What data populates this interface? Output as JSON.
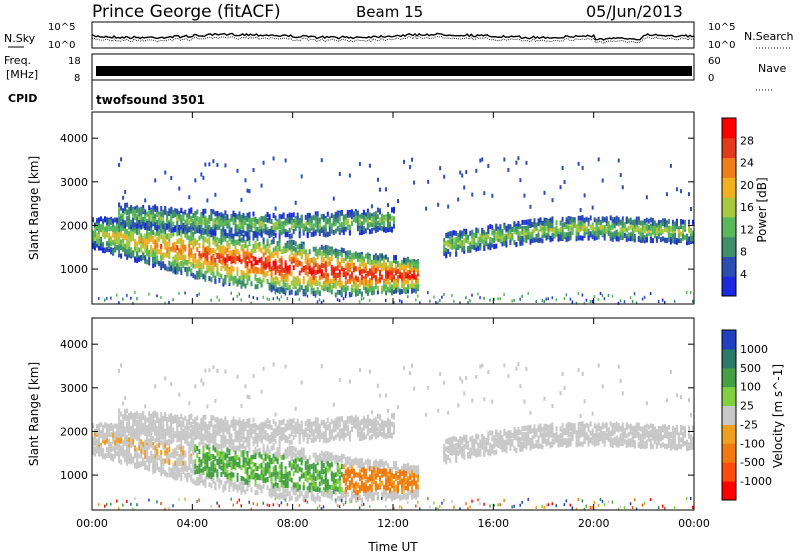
{
  "header": {
    "station": "Prince George (fitACF)",
    "beam": "Beam 15",
    "date": "05/Jun/2013"
  },
  "noise_panel": {
    "left_label": "N.Sky",
    "right_label": "N.Search",
    "left_ticks": [
      "10^5",
      "10^0"
    ],
    "right_ticks": [
      "10^5",
      "10^0"
    ]
  },
  "freq_panel": {
    "label_line1": "Freq.",
    "label_line2": "[MHz]",
    "left_ticks": [
      "18",
      "8"
    ],
    "right_label": "Nave",
    "right_ticks": [
      "60",
      "0"
    ]
  },
  "cpid_panel": {
    "label": "CPID",
    "value": "twofsound 3501"
  },
  "x_axis": {
    "label": "Time UT",
    "ticks": [
      "00:00",
      "04:00",
      "08:00",
      "12:00",
      "16:00",
      "20:00",
      "00:00"
    ]
  },
  "colors": {
    "power_scale": [
      "#1a28e0",
      "#2b4fb0",
      "#3f8f6a",
      "#58b85a",
      "#a8c840",
      "#f0b020",
      "#ef7d18",
      "#e23a1a",
      "#ff0000"
    ],
    "velocity_scale": [
      "#ff0000",
      "#ff4a10",
      "#f07a10",
      "#f0a020",
      "#c8c8c8",
      "#80d040",
      "#45a045",
      "#2a7a6a",
      "#2040c0"
    ]
  },
  "chart_data": [
    {
      "type": "heatmap",
      "title": "Power",
      "ylabel": "Slant Range [km]",
      "xlabel": "",
      "x_ticks": [
        "00:00",
        "04:00",
        "08:00",
        "12:00",
        "16:00",
        "20:00",
        "00:00"
      ],
      "y_ticks": [
        "1000",
        "2000",
        "3000",
        "4000"
      ],
      "ylim": [
        200,
        4600
      ],
      "colorbar": {
        "label": "Power [dB]",
        "ticks": [
          "4",
          "8",
          "12",
          "16",
          "20",
          "24",
          "28"
        ],
        "range": [
          0,
          32
        ]
      },
      "features": [
        {
          "band": "lower",
          "time_start_h": 0.0,
          "time_end_h": 13.0,
          "range_center_km": [
            1900,
            1600,
            1300,
            1100,
            950,
            900
          ],
          "peak_power_db": 30
        },
        {
          "band": "upper",
          "time_start_h": 1.0,
          "time_end_h": 12.0,
          "range_center_km": [
            2300,
            2200,
            2100,
            2050,
            2100,
            2200
          ],
          "peak_power_db": 18
        },
        {
          "band": "evening",
          "time_start_h": 14.0,
          "time_end_h": 24.0,
          "range_center_km": [
            1600,
            1800,
            1950,
            2000,
            1950,
            1900
          ],
          "peak_power_db": 20
        }
      ]
    },
    {
      "type": "heatmap",
      "title": "Velocity",
      "ylabel": "Slant Range [km]",
      "xlabel": "Time UT",
      "x_ticks": [
        "00:00",
        "04:00",
        "08:00",
        "12:00",
        "16:00",
        "20:00",
        "00:00"
      ],
      "y_ticks": [
        "1000",
        "2000",
        "3000",
        "4000"
      ],
      "ylim": [
        200,
        4600
      ],
      "colorbar": {
        "label": "Velocity [m s^-1]",
        "ticks": [
          "1000",
          "500",
          "100",
          "25",
          "-25",
          "-100",
          "-500",
          "-1000"
        ]
      },
      "features": [
        {
          "band": "ground-scatter",
          "time_start_h": 0.0,
          "time_end_h": 24.0,
          "velocity_ms": 0
        },
        {
          "band": "green",
          "time_start_h": 4.0,
          "time_end_h": 10.0,
          "velocity_ms": 150
        },
        {
          "band": "orange",
          "time_start_h": 10.0,
          "time_end_h": 13.0,
          "velocity_ms": -150
        }
      ]
    }
  ]
}
